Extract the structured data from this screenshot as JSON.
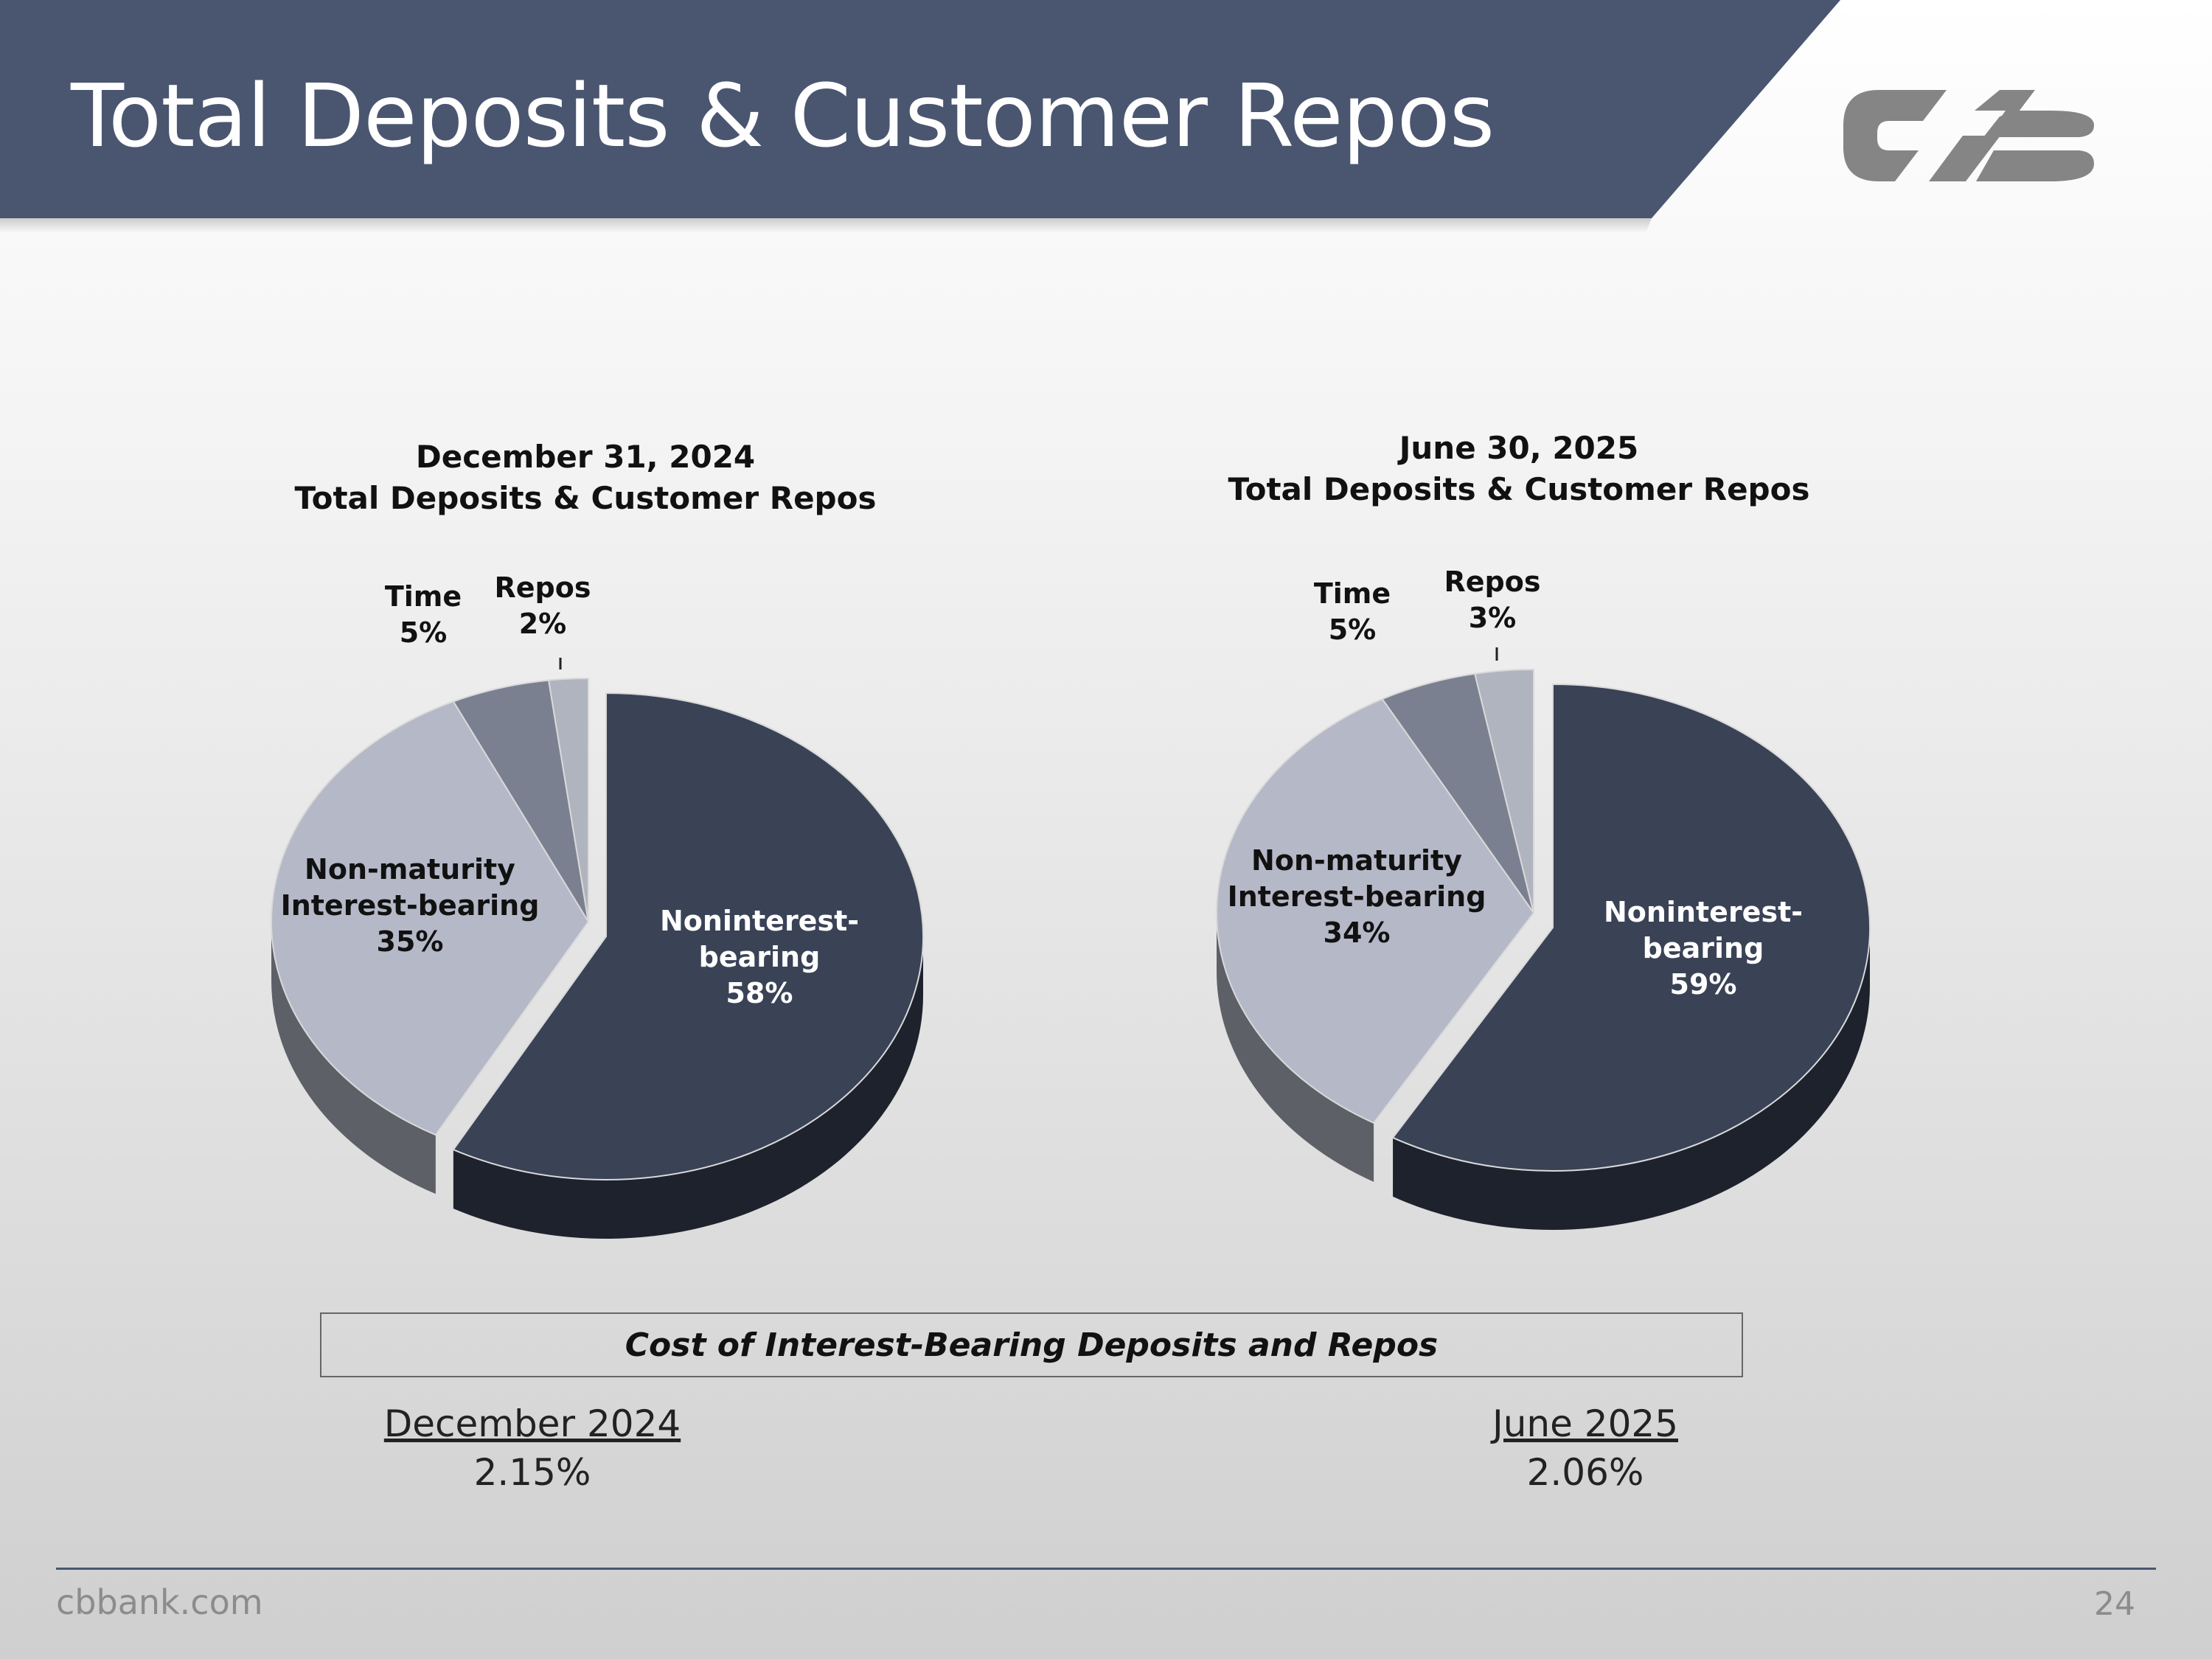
{
  "slide": {
    "title": "Total Deposits & Customer Repos",
    "footer_url": "cbbank.com",
    "page_number": "24",
    "colors": {
      "banner": "#4a5670",
      "noninterest": "#3a4256",
      "non_maturity": "#b5b8c7",
      "time": "#7b8091",
      "repos": "#b0b4bf",
      "logo": "#858585"
    }
  },
  "chart_data": [
    {
      "type": "pie",
      "title_line1": "December 31, 2024",
      "title_line2": "Total Deposits & Customer Repos",
      "slices": [
        {
          "key": "noninterest",
          "label": [
            "Noninterest-",
            "bearing"
          ],
          "value": 58,
          "value_label": "58%"
        },
        {
          "key": "non_maturity",
          "label": [
            "Non-maturity",
            "Interest-bearing"
          ],
          "value": 35,
          "value_label": "35%"
        },
        {
          "key": "time",
          "label": [
            "Time"
          ],
          "value": 5,
          "value_label": "5%"
        },
        {
          "key": "repos",
          "label": [
            "Repos"
          ],
          "value": 2,
          "value_label": "2%"
        }
      ]
    },
    {
      "type": "pie",
      "title_line1": "June 30, 2025",
      "title_line2": "Total Deposits & Customer Repos",
      "slices": [
        {
          "key": "noninterest",
          "label": [
            "Noninterest-",
            "bearing"
          ],
          "value": 59,
          "value_label": "59%"
        },
        {
          "key": "non_maturity",
          "label": [
            "Non-maturity",
            "Interest-bearing"
          ],
          "value": 34,
          "value_label": "34%"
        },
        {
          "key": "time",
          "label": [
            "Time"
          ],
          "value": 5,
          "value_label": "5%"
        },
        {
          "key": "repos",
          "label": [
            "Repos"
          ],
          "value": 3,
          "value_label": "3%"
        }
      ]
    }
  ],
  "cost": {
    "title": "Cost of Interest-Bearing Deposits and Repos",
    "periods": [
      {
        "label": "December 2024",
        "value": "2.15%"
      },
      {
        "label": "June 2025",
        "value": "2.06%"
      }
    ]
  }
}
